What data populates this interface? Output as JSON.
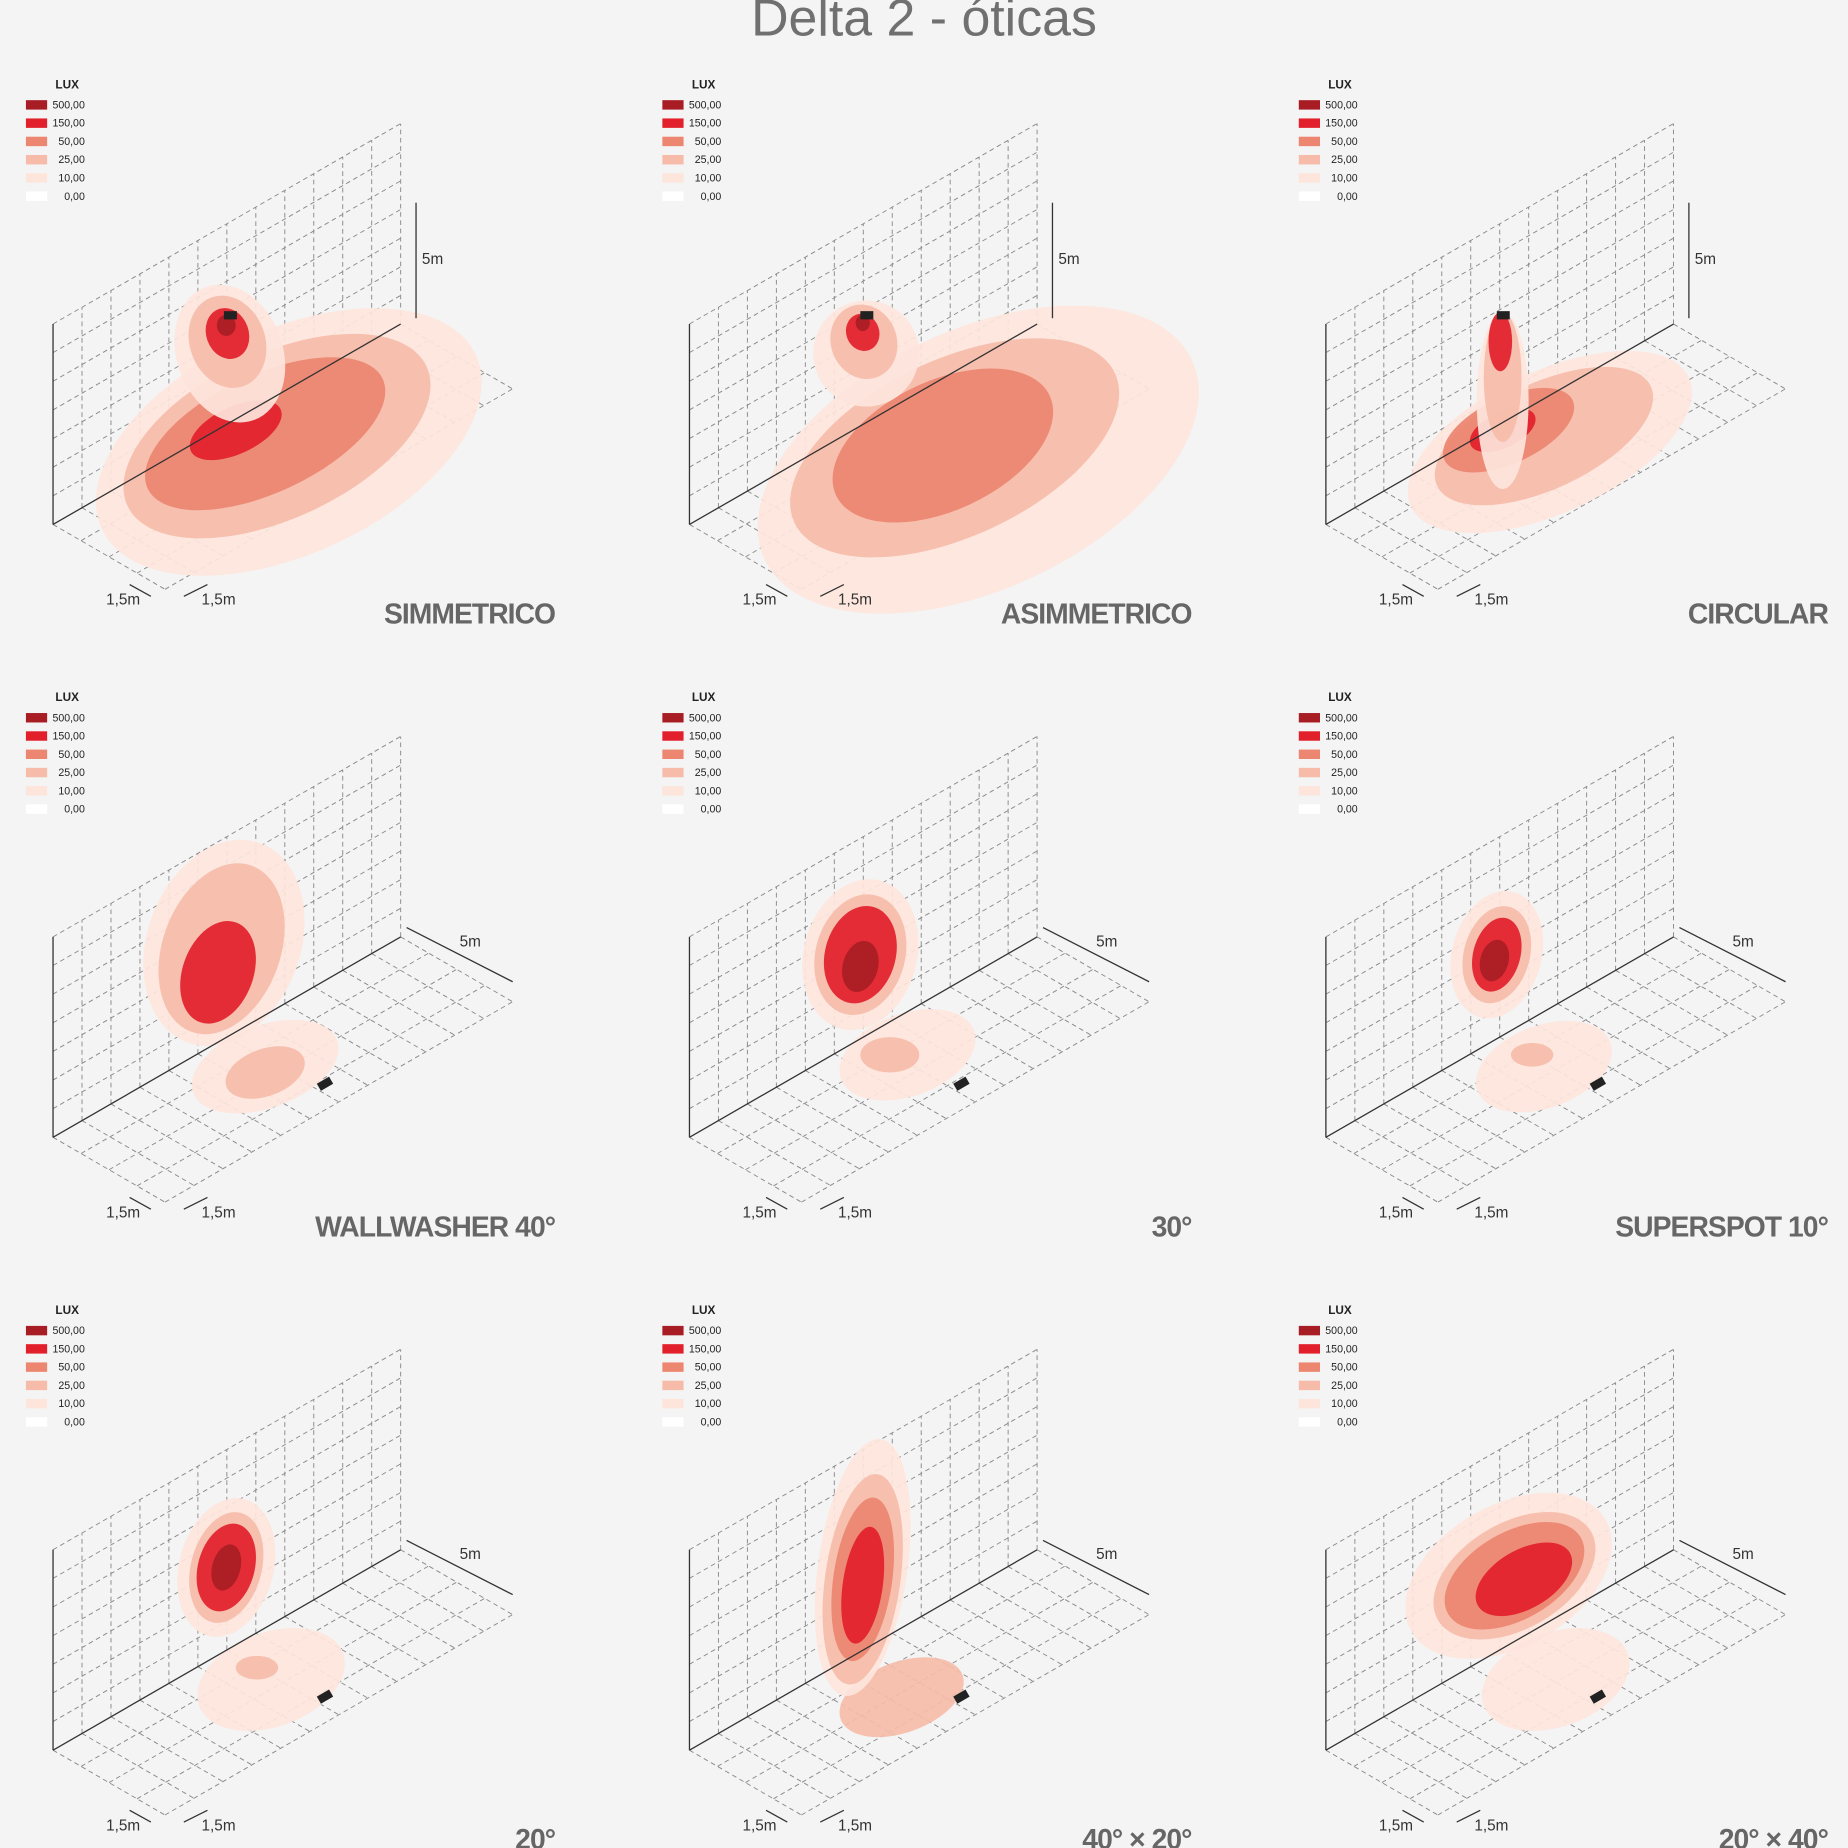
{
  "title": "Delta 2 - óticas",
  "legend": {
    "title": "LUX",
    "levels": [
      {
        "label": "500,00",
        "color": "#a81d24"
      },
      {
        "label": "150,00",
        "color": "#e2202b"
      },
      {
        "label": "50,00",
        "color": "#ec8670"
      },
      {
        "label": "25,00",
        "color": "#f6bca9"
      },
      {
        "label": "10,00",
        "color": "#fde5dc"
      },
      {
        "label": "0,00",
        "color": "#ffffff"
      }
    ]
  },
  "dimensions": {
    "height": "5m",
    "width": "1,5m",
    "depth": "1,5m"
  },
  "panels": [
    {
      "name": "SIMMETRICO"
    },
    {
      "name": "ASIMMETRICO"
    },
    {
      "name": "CIRCULAR"
    },
    {
      "name": "WALLWASHER 40°"
    },
    {
      "name": "30°"
    },
    {
      "name": "SUPERSPOT 10°"
    },
    {
      "name": "20°"
    },
    {
      "name": "40° × 20°"
    },
    {
      "name": "20° × 40°"
    }
  ]
}
